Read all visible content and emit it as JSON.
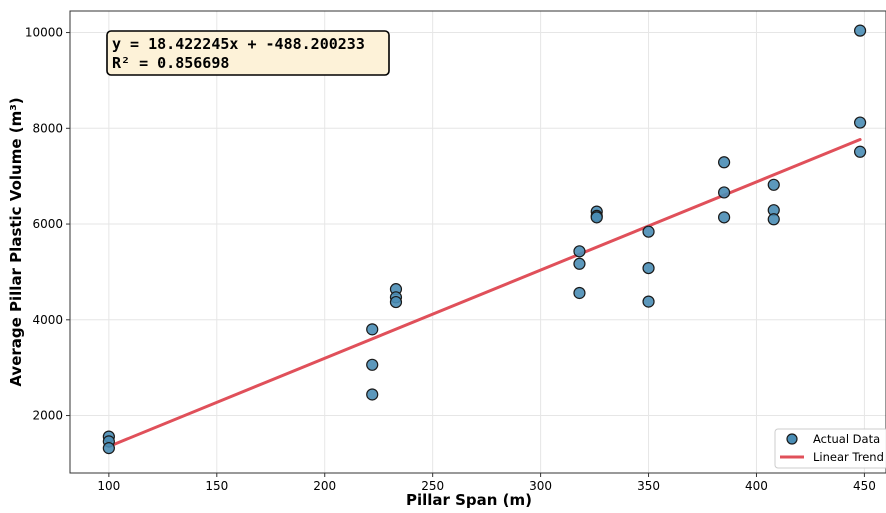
{
  "chart_data": {
    "type": "scatter",
    "xlabel": "Pillar Span (m)",
    "ylabel": "Average Pillar Plastic Volume (m³)",
    "xlim": [
      82,
      460
    ],
    "ylim": [
      800,
      10450
    ],
    "xticks": [
      100,
      150,
      200,
      250,
      300,
      350,
      400,
      450
    ],
    "yticks": [
      2000,
      4000,
      6000,
      8000,
      10000
    ],
    "grid": true,
    "legend_position": "bottom-right",
    "annotation": {
      "line1": "y = 18.422245x + -488.200233",
      "line2": "R² = 0.856698"
    },
    "series": [
      {
        "name": "Actual Data",
        "kind": "scatter",
        "color": "#4a8db5",
        "points": [
          [
            100,
            1560
          ],
          [
            100,
            1460
          ],
          [
            100,
            1320
          ],
          [
            222,
            3800
          ],
          [
            222,
            3060
          ],
          [
            222,
            2440
          ],
          [
            233,
            4640
          ],
          [
            233,
            4470
          ],
          [
            233,
            4370
          ],
          [
            318,
            5430
          ],
          [
            318,
            5170
          ],
          [
            318,
            4560
          ],
          [
            326,
            6260
          ],
          [
            326,
            6170
          ],
          [
            326,
            6140
          ],
          [
            350,
            5840
          ],
          [
            350,
            5080
          ],
          [
            350,
            4380
          ],
          [
            385,
            7290
          ],
          [
            385,
            6660
          ],
          [
            385,
            6140
          ],
          [
            408,
            6820
          ],
          [
            408,
            6290
          ],
          [
            408,
            6100
          ],
          [
            448,
            10040
          ],
          [
            448,
            8120
          ],
          [
            448,
            7510
          ]
        ]
      },
      {
        "name": "Linear Trend",
        "kind": "line",
        "color": "#e0505a",
        "slope": 18.422245,
        "intercept": -488.200233,
        "x_range": [
          100,
          448
        ]
      }
    ]
  }
}
